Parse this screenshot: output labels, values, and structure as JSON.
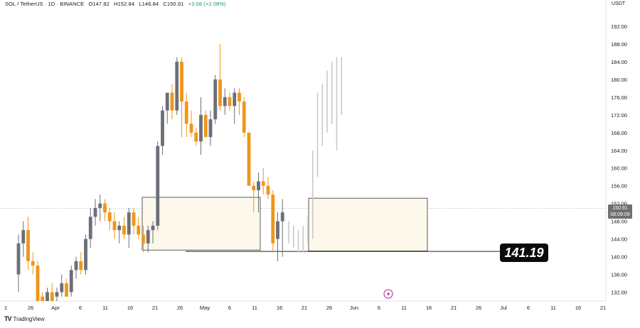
{
  "header": {
    "symbol": "SOL / TetherUS · 1D · BINANCE",
    "open": "O147.82",
    "high": "H152.84",
    "low": "L146.84",
    "close": "C150.91",
    "change": "+3.08 (+2.08%)"
  },
  "currency_label": "USDT",
  "last_price": {
    "value": "150.91",
    "countdown": "08:09:09"
  },
  "callout_label": "141.19",
  "branding": {
    "name": "TradingView"
  },
  "colors": {
    "up": "#6b6f78",
    "down": "#f0961a",
    "box_fill": "#fdf8ec",
    "projection": "#c9c9c9",
    "last_price_line": "#9aa0aa"
  },
  "chart_data": {
    "type": "candlestick",
    "y_axis": {
      "min": 130,
      "max": 196,
      "ticks": [
        "132.00",
        "136.00",
        "140.00",
        "144.00",
        "148.00",
        "152.00",
        "156.00",
        "160.00",
        "164.00",
        "168.00",
        "172.00",
        "176.00",
        "180.00",
        "184.00",
        "188.00",
        "192.00"
      ]
    },
    "x_axis": {
      "tick_labels": [
        "1",
        "26",
        "Apr",
        "6",
        "11",
        "16",
        "21",
        "26",
        "May",
        "6",
        "11",
        "16",
        "21",
        "26",
        "Jun",
        "6",
        "11",
        "16",
        "21",
        "26",
        "Jul",
        "6",
        "11",
        "16",
        "21"
      ]
    },
    "horizontal_line": 141.19,
    "last_price": 150.91,
    "boxes": [
      {
        "from_index": 0,
        "to_index": 1,
        "top": 153.4,
        "bottom": 141.5
      },
      {
        "from_index": 2,
        "to_index": 3,
        "top": 153.2,
        "bottom": 141.3
      }
    ],
    "candles": [
      {
        "o": 136,
        "h": 145,
        "l": 132,
        "c": 143
      },
      {
        "o": 143,
        "h": 148,
        "l": 140,
        "c": 146
      },
      {
        "o": 146,
        "h": 149,
        "l": 137,
        "c": 139
      },
      {
        "o": 139,
        "h": 141,
        "l": 136,
        "c": 138
      },
      {
        "o": 138,
        "h": 139,
        "l": 128,
        "c": 130
      },
      {
        "o": 131,
        "h": 132,
        "l": 128,
        "c": 128
      },
      {
        "o": 130,
        "h": 133,
        "l": 129,
        "c": 132
      },
      {
        "o": 132,
        "h": 134,
        "l": 129,
        "c": 130
      },
      {
        "o": 131,
        "h": 133,
        "l": 130,
        "c": 132
      },
      {
        "o": 132,
        "h": 136,
        "l": 131,
        "c": 134
      },
      {
        "o": 134,
        "h": 135,
        "l": 131,
        "c": 131
      },
      {
        "o": 132,
        "h": 138,
        "l": 131,
        "c": 137
      },
      {
        "o": 137,
        "h": 140,
        "l": 135,
        "c": 139
      },
      {
        "o": 139,
        "h": 141,
        "l": 136,
        "c": 137
      },
      {
        "o": 137,
        "h": 145,
        "l": 136,
        "c": 144
      },
      {
        "o": 144,
        "h": 151,
        "l": 142,
        "c": 149
      },
      {
        "o": 149,
        "h": 153,
        "l": 147,
        "c": 151
      },
      {
        "o": 151,
        "h": 154,
        "l": 148,
        "c": 152
      },
      {
        "o": 152,
        "h": 153,
        "l": 148,
        "c": 150
      },
      {
        "o": 150,
        "h": 151,
        "l": 146,
        "c": 148
      },
      {
        "o": 148,
        "h": 150,
        "l": 144,
        "c": 146
      },
      {
        "o": 146,
        "h": 148,
        "l": 143,
        "c": 147
      },
      {
        "o": 147,
        "h": 149,
        "l": 144,
        "c": 145
      },
      {
        "o": 145,
        "h": 151,
        "l": 142,
        "c": 150
      },
      {
        "o": 150,
        "h": 151,
        "l": 145,
        "c": 147
      },
      {
        "o": 147,
        "h": 149,
        "l": 144,
        "c": 145
      },
      {
        "o": 145,
        "h": 147,
        "l": 141,
        "c": 143
      },
      {
        "o": 143,
        "h": 147,
        "l": 141,
        "c": 146
      },
      {
        "o": 146,
        "h": 148,
        "l": 143,
        "c": 147
      },
      {
        "o": 147,
        "h": 166,
        "l": 146,
        "c": 165
      },
      {
        "o": 165,
        "h": 174,
        "l": 163,
        "c": 173
      },
      {
        "o": 173,
        "h": 177,
        "l": 170,
        "c": 177
      },
      {
        "o": 177,
        "h": 179,
        "l": 171,
        "c": 173
      },
      {
        "o": 173,
        "h": 185,
        "l": 172,
        "c": 184
      },
      {
        "o": 184,
        "h": 185,
        "l": 167,
        "c": 175
      },
      {
        "o": 175,
        "h": 177,
        "l": 167,
        "c": 170
      },
      {
        "o": 170,
        "h": 173,
        "l": 167,
        "c": 168
      },
      {
        "o": 168,
        "h": 169,
        "l": 165,
        "c": 166
      },
      {
        "o": 166,
        "h": 176,
        "l": 163,
        "c": 172
      },
      {
        "o": 172,
        "h": 173,
        "l": 167,
        "c": 167
      },
      {
        "o": 167,
        "h": 173,
        "l": 165,
        "c": 171
      },
      {
        "o": 171,
        "h": 181,
        "l": 170,
        "c": 180
      },
      {
        "o": 180,
        "h": 188,
        "l": 173,
        "c": 174
      },
      {
        "o": 174,
        "h": 178,
        "l": 172,
        "c": 176
      },
      {
        "o": 176,
        "h": 177,
        "l": 173,
        "c": 174
      },
      {
        "o": 174,
        "h": 178,
        "l": 170,
        "c": 177
      },
      {
        "o": 177,
        "h": 178,
        "l": 172,
        "c": 175
      },
      {
        "o": 175,
        "h": 176,
        "l": 167,
        "c": 168
      },
      {
        "o": 168,
        "h": 168,
        "l": 156,
        "c": 156
      },
      {
        "o": 156,
        "h": 157,
        "l": 150,
        "c": 155
      },
      {
        "o": 155,
        "h": 159,
        "l": 150,
        "c": 157
      },
      {
        "o": 157,
        "h": 160,
        "l": 154,
        "c": 156
      },
      {
        "o": 156,
        "h": 158,
        "l": 153,
        "c": 154
      },
      {
        "o": 154,
        "h": 155,
        "l": 141,
        "c": 143
      },
      {
        "o": 144,
        "h": 150,
        "l": 139,
        "c": 148
      },
      {
        "o": 148,
        "h": 153,
        "l": 140,
        "c": 150
      }
    ],
    "projection_bars": [
      {
        "h": 148,
        "l": 143
      },
      {
        "h": 147,
        "l": 142
      },
      {
        "h": 146,
        "l": 141
      },
      {
        "h": 147,
        "l": 141
      },
      {
        "h": 149,
        "l": 143
      },
      {
        "h": 164,
        "l": 144
      },
      {
        "h": 177,
        "l": 158
      },
      {
        "h": 179,
        "l": 165
      },
      {
        "h": 182,
        "l": 168
      },
      {
        "h": 184,
        "l": 170
      },
      {
        "h": 185,
        "l": 164
      },
      {
        "h": 185,
        "l": 172
      }
    ]
  }
}
